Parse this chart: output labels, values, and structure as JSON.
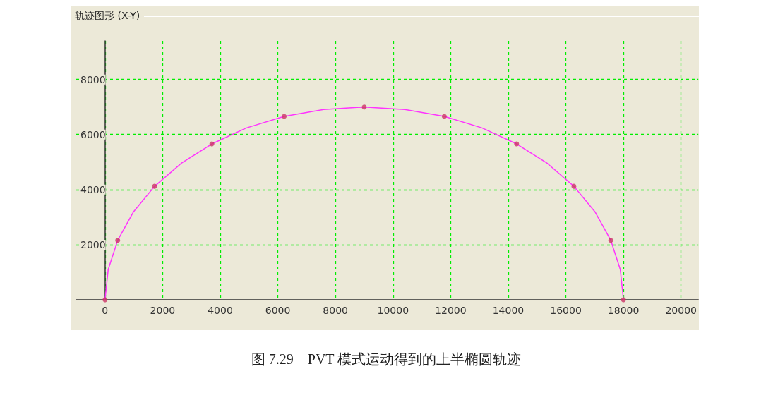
{
  "chart_data": {
    "type": "line",
    "title": "轨迹图形 (X-Y)",
    "annotations": [
      "图 7.29　PVT 模式运动得到的上半椭圆轨迹"
    ],
    "xlim": [
      -1000,
      20600
    ],
    "ylim": [
      0,
      9400
    ],
    "xticks": [
      0,
      2000,
      4000,
      6000,
      8000,
      10000,
      12000,
      14000,
      16000,
      18000,
      20000
    ],
    "yticks": [
      2000,
      4000,
      6000,
      8000
    ],
    "grid": true,
    "series": [
      {
        "color": "#ff33ff",
        "marker": "none",
        "line_style": "solid",
        "x": [
          0,
          110,
          440,
          980,
          1720,
          2640,
          3710,
          4910,
          6220,
          7590,
          9000,
          10410,
          11780,
          13090,
          14290,
          15360,
          16280,
          17020,
          17560,
          17890,
          18000
        ],
        "values": [
          0,
          1100,
          2160,
          3180,
          4120,
          4950,
          5660,
          6240,
          6660,
          6910,
          7000,
          6910,
          6660,
          6240,
          5660,
          4950,
          4120,
          3180,
          2160,
          1100,
          0
        ]
      },
      {
        "type": "scatter",
        "color": "#cc3366",
        "marker": "circle",
        "x": [
          0,
          440,
          1720,
          3710,
          6220,
          9000,
          11780,
          14290,
          16280,
          17560,
          18000
        ],
        "values": [
          0,
          2160,
          4120,
          5660,
          6660,
          7000,
          6660,
          5660,
          4120,
          2160,
          0
        ]
      }
    ]
  }
}
